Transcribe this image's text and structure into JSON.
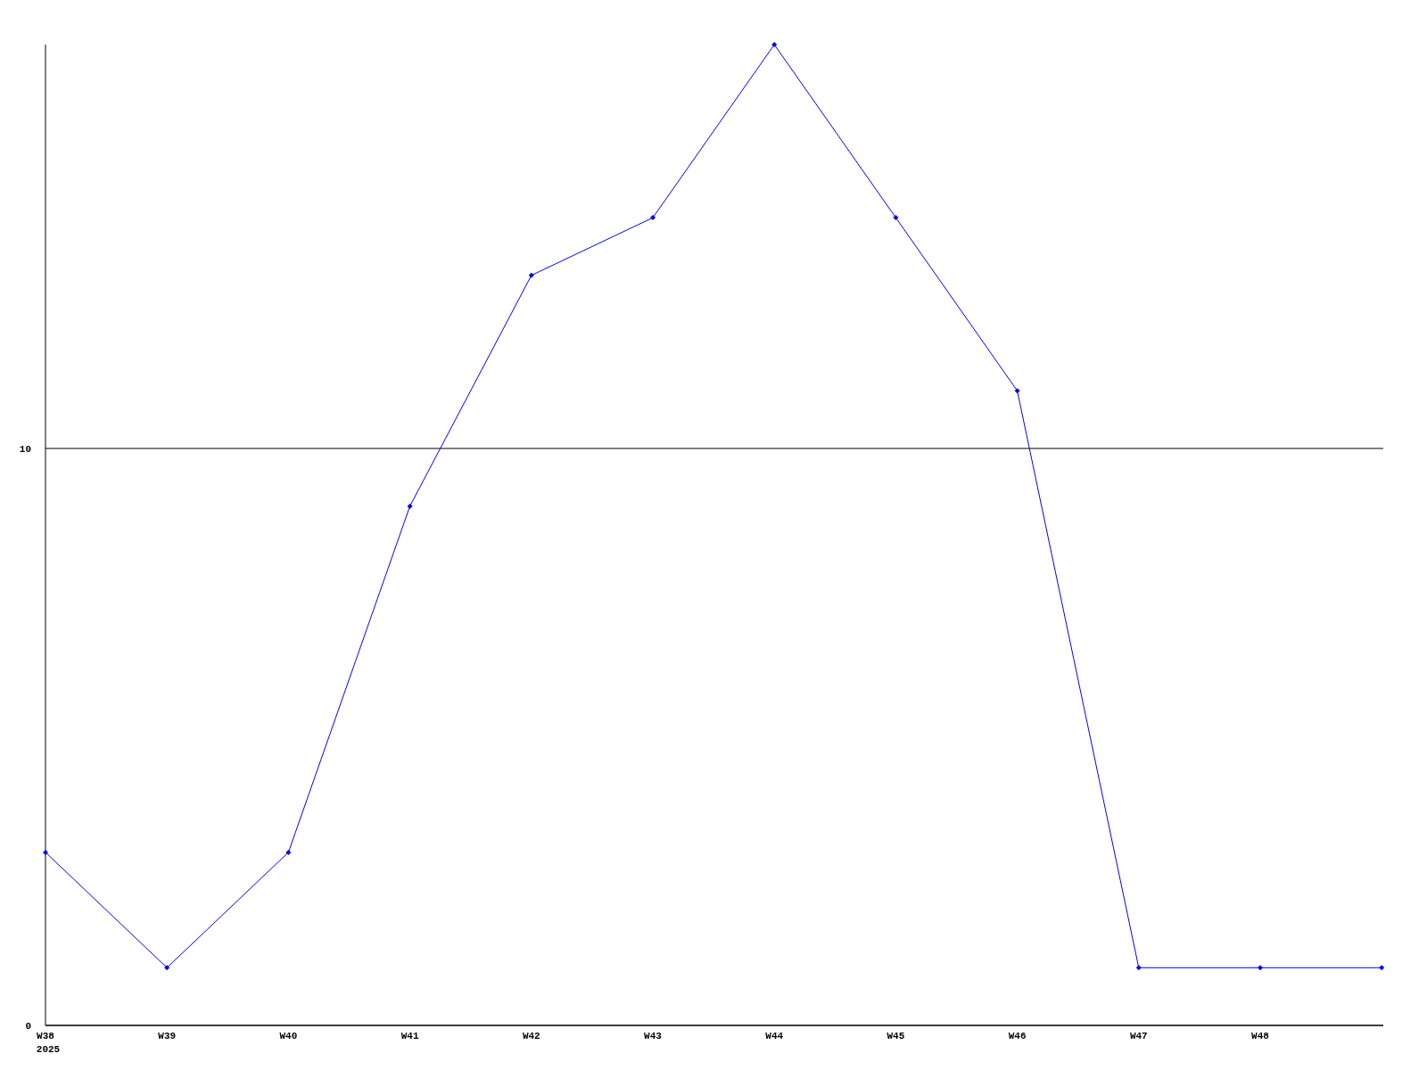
{
  "chart_data": {
    "type": "line",
    "categories": [
      "W38\n2025",
      "W39",
      "W40",
      "W41",
      "W42",
      "W43",
      "W44",
      "W45",
      "W46",
      "W47",
      "W48",
      null
    ],
    "series": [
      {
        "color": "#0000ff",
        "values": [
          3,
          1,
          3,
          9,
          13,
          14,
          17,
          14,
          11,
          1,
          1,
          1
        ]
      }
    ],
    "ylim": [
      0,
      17
    ],
    "yticks": [
      0,
      10
    ],
    "grid": "y",
    "marker": "diamond",
    "line_style": "solid"
  }
}
